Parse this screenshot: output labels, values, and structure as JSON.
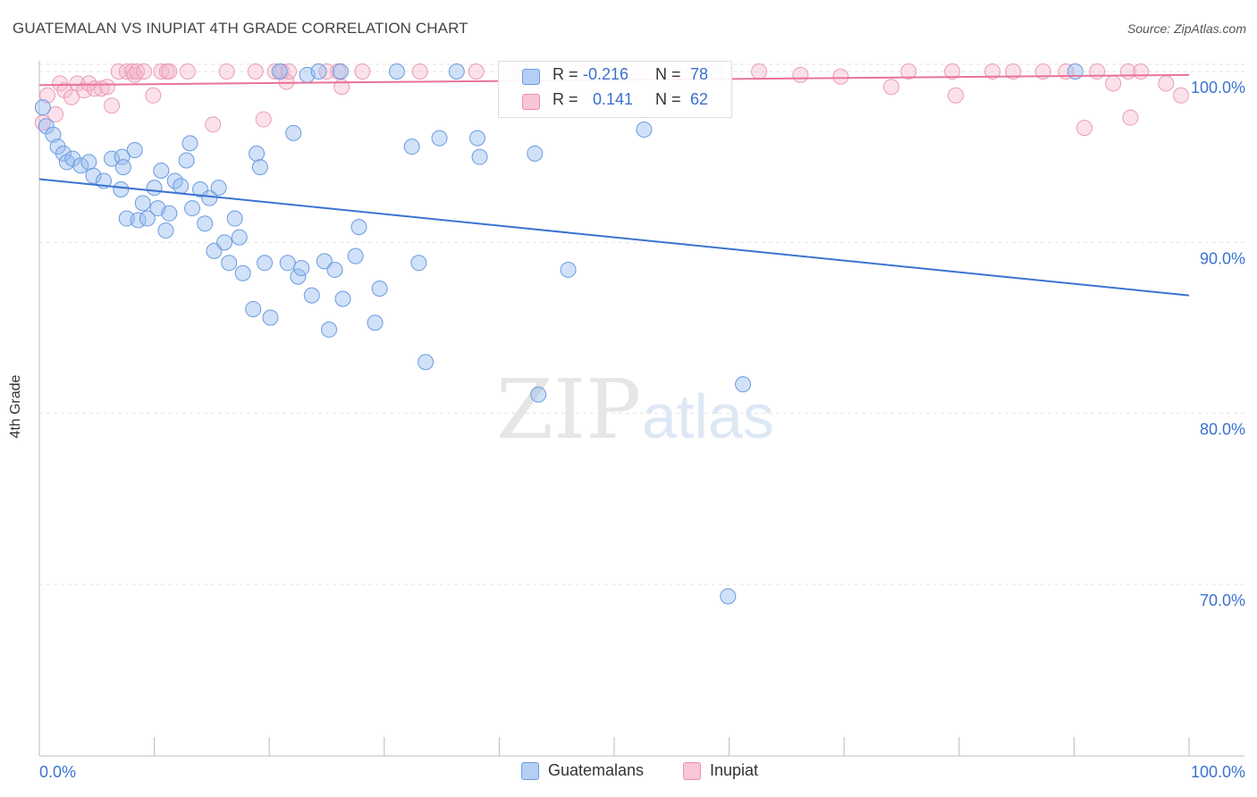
{
  "header": {
    "title": "GUATEMALAN VS INUPIAT 4TH GRADE CORRELATION CHART",
    "source": "Source: ZipAtlas.com"
  },
  "watermark": {
    "zip": "ZIP",
    "atlas": "atlas"
  },
  "stats": {
    "blue": {
      "r_label": "R =",
      "r_value": "-0.216",
      "n_label": "N =",
      "n_value": "78"
    },
    "pink": {
      "r_label": "R =",
      "r_value": "0.141",
      "n_label": "N =",
      "n_value": "62"
    }
  },
  "legend": {
    "blue": "Guatemalans",
    "pink": "Inupiat"
  },
  "colors": {
    "blue": "#3b73d1",
    "pink": "#e8739a",
    "blue_fill": "#b5cff4",
    "pink_fill": "#f9c6d6"
  },
  "chart_data": {
    "type": "scatter",
    "title": "GUATEMALAN VS INUPIAT 4TH GRADE CORRELATION CHART",
    "xlabel": "",
    "ylabel": "4th Grade",
    "xlim": [
      0,
      100
    ],
    "ylim": [
      60,
      101.5
    ],
    "x_tick_labels": [
      "0.0%",
      "100.0%"
    ],
    "y_ticks": [
      70,
      80,
      90,
      100
    ],
    "y_tick_labels": [
      "70.0%",
      "80.0%",
      "90.0%",
      "100.0%"
    ],
    "grid": true,
    "legend_position": "bottom-center",
    "series": [
      {
        "name": "Guatemalans",
        "r": -0.216,
        "n": 78,
        "trend": {
          "x": [
            0,
            100
          ],
          "y": [
            93.7,
            86.9
          ]
        },
        "points": [
          [
            0.3,
            97.9
          ],
          [
            0.6,
            96.8
          ],
          [
            1.2,
            96.3
          ],
          [
            1.6,
            95.6
          ],
          [
            2.1,
            95.2
          ],
          [
            2.4,
            94.7
          ],
          [
            2.9,
            94.9
          ],
          [
            3.6,
            94.5
          ],
          [
            4.3,
            94.7
          ],
          [
            4.7,
            93.9
          ],
          [
            5.6,
            93.6
          ],
          [
            6.3,
            94.9
          ],
          [
            7.1,
            93.1
          ],
          [
            7.2,
            95.0
          ],
          [
            7.3,
            94.4
          ],
          [
            7.6,
            91.4
          ],
          [
            8.3,
            95.4
          ],
          [
            8.6,
            91.3
          ],
          [
            9.0,
            92.3
          ],
          [
            9.4,
            91.4
          ],
          [
            10.0,
            93.2
          ],
          [
            10.3,
            92.0
          ],
          [
            10.6,
            94.2
          ],
          [
            11.0,
            90.7
          ],
          [
            11.3,
            91.7
          ],
          [
            11.8,
            93.6
          ],
          [
            12.3,
            93.3
          ],
          [
            12.8,
            94.8
          ],
          [
            13.1,
            95.8
          ],
          [
            13.3,
            92.0
          ],
          [
            14.0,
            93.1
          ],
          [
            14.4,
            91.1
          ],
          [
            14.8,
            92.6
          ],
          [
            15.2,
            89.5
          ],
          [
            15.6,
            93.2
          ],
          [
            16.1,
            90.0
          ],
          [
            16.5,
            88.8
          ],
          [
            17.0,
            91.4
          ],
          [
            17.4,
            90.3
          ],
          [
            17.7,
            88.2
          ],
          [
            18.6,
            86.1
          ],
          [
            18.9,
            95.2
          ],
          [
            19.2,
            94.4
          ],
          [
            19.6,
            88.8
          ],
          [
            20.1,
            85.6
          ],
          [
            20.9,
            100.0
          ],
          [
            21.6,
            88.8
          ],
          [
            22.1,
            96.4
          ],
          [
            22.5,
            88.0
          ],
          [
            22.8,
            88.5
          ],
          [
            23.3,
            99.8
          ],
          [
            23.7,
            86.9
          ],
          [
            24.3,
            100.0
          ],
          [
            24.8,
            88.9
          ],
          [
            25.2,
            84.9
          ],
          [
            25.7,
            88.4
          ],
          [
            26.2,
            100.0
          ],
          [
            26.4,
            86.7
          ],
          [
            27.5,
            89.2
          ],
          [
            27.8,
            90.9
          ],
          [
            29.2,
            85.3
          ],
          [
            29.6,
            87.3
          ],
          [
            31.1,
            100.0
          ],
          [
            32.4,
            95.6
          ],
          [
            33.0,
            88.8
          ],
          [
            33.6,
            83.0
          ],
          [
            34.8,
            96.1
          ],
          [
            36.3,
            100.0
          ],
          [
            38.1,
            96.1
          ],
          [
            38.3,
            95.0
          ],
          [
            43.1,
            95.2
          ],
          [
            43.4,
            81.1
          ],
          [
            46.0,
            88.4
          ],
          [
            52.6,
            96.6
          ],
          [
            58.9,
            100.0
          ],
          [
            59.9,
            69.3
          ],
          [
            61.2,
            81.7
          ],
          [
            90.1,
            100.0
          ]
        ]
      },
      {
        "name": "Inupiat",
        "r": 0.141,
        "n": 62,
        "trend": {
          "x": [
            0,
            100
          ],
          "y": [
            99.2,
            99.8
          ]
        },
        "points": [
          [
            0.3,
            97.0
          ],
          [
            0.7,
            98.6
          ],
          [
            1.4,
            97.5
          ],
          [
            1.8,
            99.3
          ],
          [
            2.2,
            98.9
          ],
          [
            2.8,
            98.5
          ],
          [
            3.3,
            99.3
          ],
          [
            3.9,
            98.9
          ],
          [
            4.3,
            99.3
          ],
          [
            4.8,
            99.0
          ],
          [
            5.4,
            99.0
          ],
          [
            5.9,
            99.1
          ],
          [
            6.3,
            98.0
          ],
          [
            6.9,
            100.0
          ],
          [
            7.6,
            100.0
          ],
          [
            8.1,
            100.0
          ],
          [
            8.3,
            99.8
          ],
          [
            8.5,
            100.0
          ],
          [
            9.1,
            100.0
          ],
          [
            9.9,
            98.6
          ],
          [
            10.6,
            100.0
          ],
          [
            11.1,
            100.0
          ],
          [
            11.3,
            100.0
          ],
          [
            12.9,
            100.0
          ],
          [
            15.1,
            96.9
          ],
          [
            16.3,
            100.0
          ],
          [
            18.8,
            100.0
          ],
          [
            19.5,
            97.2
          ],
          [
            20.5,
            100.0
          ],
          [
            21.1,
            100.0
          ],
          [
            21.5,
            99.4
          ],
          [
            21.7,
            100.0
          ],
          [
            25.0,
            100.0
          ],
          [
            26.0,
            100.0
          ],
          [
            26.3,
            99.1
          ],
          [
            28.1,
            100.0
          ],
          [
            33.1,
            100.0
          ],
          [
            38.0,
            100.0
          ],
          [
            41.0,
            100.0
          ],
          [
            42.1,
            100.0
          ],
          [
            47.8,
            100.0
          ],
          [
            52.3,
            100.0
          ],
          [
            56.9,
            100.0
          ],
          [
            62.6,
            100.0
          ],
          [
            66.2,
            99.8
          ],
          [
            69.7,
            99.7
          ],
          [
            74.1,
            99.1
          ],
          [
            75.6,
            100.0
          ],
          [
            79.4,
            100.0
          ],
          [
            79.7,
            98.6
          ],
          [
            82.9,
            100.0
          ],
          [
            84.7,
            100.0
          ],
          [
            87.3,
            100.0
          ],
          [
            89.3,
            100.0
          ],
          [
            90.9,
            96.7
          ],
          [
            92.0,
            100.0
          ],
          [
            93.4,
            99.3
          ],
          [
            94.7,
            100.0
          ],
          [
            94.9,
            97.3
          ],
          [
            95.8,
            100.0
          ],
          [
            98.0,
            99.3
          ],
          [
            99.3,
            98.6
          ]
        ]
      }
    ]
  }
}
